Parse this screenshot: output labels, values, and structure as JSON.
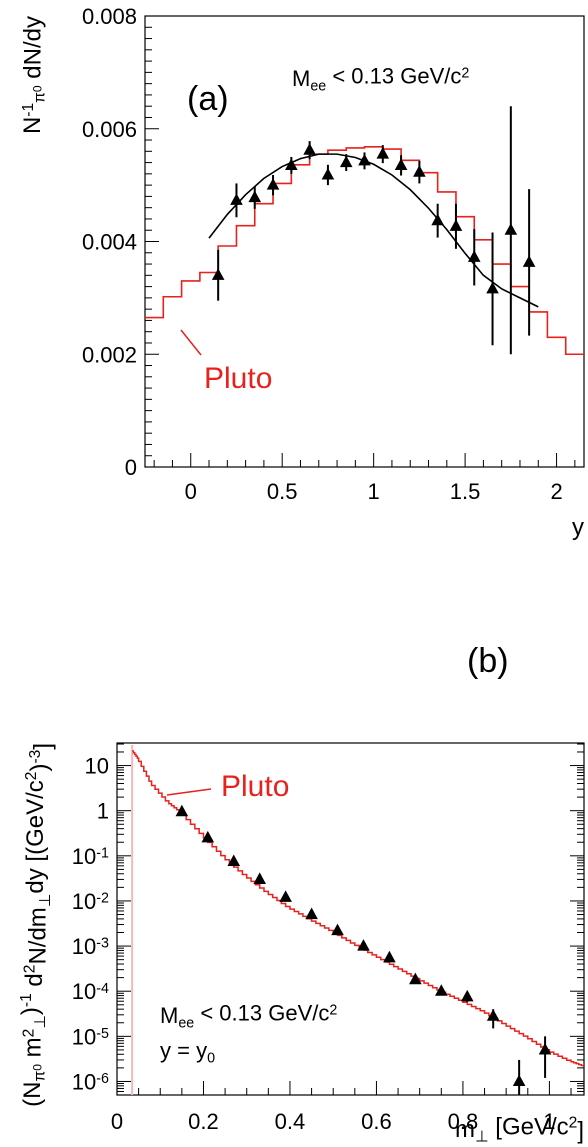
{
  "chart_data": [
    {
      "type": "line",
      "panel_label": "(a)",
      "annotation": {
        "main": "M",
        "sub": "ee",
        "rest": " < 0.13 GeV/c",
        "sup": "2"
      },
      "xlabel": "y",
      "ylabel": {
        "a": "N",
        "sup": "-1",
        "sub": "π",
        "subsup": "0",
        "b": " dN/dy"
      },
      "xlim": [
        -0.25,
        2.15
      ],
      "ylim": [
        0,
        0.008
      ],
      "x_ticks": [
        {
          "v": 0,
          "label": "0"
        },
        {
          "v": 0.5,
          "label": "0.5"
        },
        {
          "v": 1,
          "label": "1"
        },
        {
          "v": 1.5,
          "label": "1.5"
        },
        {
          "v": 2,
          "label": "2"
        }
      ],
      "y_ticks": [
        {
          "v": 0,
          "label": "0"
        },
        {
          "v": 0.002,
          "label": "0.002"
        },
        {
          "v": 0.004,
          "label": "0.004"
        },
        {
          "v": 0.006,
          "label": "0.006"
        },
        {
          "v": 0.008,
          "label": "0.008"
        }
      ],
      "pluto_label": "Pluto",
      "series": [
        {
          "kind": "step",
          "color": "#e8211c",
          "edges": [
            -0.25,
            -0.15,
            -0.05,
            0.05,
            0.15,
            0.25,
            0.35,
            0.45,
            0.55,
            0.65,
            0.75,
            0.85,
            0.95,
            1.05,
            1.15,
            1.25,
            1.35,
            1.45,
            1.55,
            1.65,
            1.75,
            1.85,
            1.95,
            2.05,
            2.15
          ],
          "values": [
            0.00265,
            0.00302,
            0.0033,
            0.00345,
            0.00392,
            0.00428,
            0.00467,
            0.00503,
            0.00536,
            0.00555,
            0.00562,
            0.00566,
            0.00568,
            0.00564,
            0.00544,
            0.00522,
            0.00488,
            0.00444,
            0.00403,
            0.0036,
            0.0032,
            0.00275,
            0.0023,
            0.002
          ]
        },
        {
          "kind": "fit",
          "color": "#000000",
          "x": [
            0.1,
            0.2,
            0.3,
            0.4,
            0.5,
            0.6,
            0.7,
            0.8,
            0.9,
            1.0,
            1.1,
            1.2,
            1.3,
            1.4,
            1.5,
            1.6,
            1.7,
            1.8,
            1.9
          ],
          "y": [
            0.00406,
            0.00448,
            0.00483,
            0.00512,
            0.00533,
            0.00547,
            0.00555,
            0.00555,
            0.00549,
            0.00537,
            0.00518,
            0.00492,
            0.00459,
            0.00421,
            0.00379,
            0.0034,
            0.00316,
            0.003,
            0.00284
          ]
        },
        {
          "kind": "points",
          "color": "#000000",
          "x": [
            0.15,
            0.25,
            0.35,
            0.45,
            0.55,
            0.65,
            0.75,
            0.85,
            0.95,
            1.05,
            1.15,
            1.25,
            1.35,
            1.45,
            1.55,
            1.65,
            1.75,
            1.85
          ],
          "y": [
            0.0034,
            0.00473,
            0.00478,
            0.005,
            0.00535,
            0.00562,
            0.00518,
            0.0054,
            0.00543,
            0.00555,
            0.00535,
            0.00523,
            0.00437,
            0.00427,
            0.00372,
            0.00316,
            0.0042,
            0.00363
          ],
          "err": [
            0.00045,
            0.0003,
            0.0002,
            0.00018,
            0.00015,
            0.00016,
            0.00018,
            0.00015,
            0.00015,
            0.00016,
            0.00018,
            0.0002,
            0.0003,
            0.0004,
            0.0005,
            0.001,
            0.0022,
            0.0013
          ]
        }
      ]
    },
    {
      "type": "line",
      "panel_label": "(b)",
      "annotation": {
        "main": "M",
        "sub": "ee",
        "rest": " < 0.13 GeV/c",
        "sup": "2"
      },
      "annotation2": {
        "a": "y  =  y",
        "sub": "0"
      },
      "xlabel": {
        "a": "m",
        "sub": "⊥",
        "b": "  [GeV/c",
        "sup": "2",
        "c": "]"
      },
      "ylabel": {
        "a": "(N",
        "sub1": "π",
        "subsup1": "0",
        "b": " m",
        "sup2": "2",
        "sub2": "⊥",
        "c": ")",
        "sup3": "-1",
        "d": " d",
        "sup4": "2",
        "e": "N/dm",
        "sub5": "⊥",
        "f": "dy  [(GeV/c",
        "sup6": "2",
        "g": ")",
        "sup7": "-3",
        "h": "]"
      },
      "xlim": [
        0,
        1.08
      ],
      "ylim_log10": [
        -6.3,
        1.5
      ],
      "x_ticks": [
        {
          "v": 0,
          "label": "0"
        },
        {
          "v": 0.2,
          "label": "0.2"
        },
        {
          "v": 0.4,
          "label": "0.4"
        },
        {
          "v": 0.6,
          "label": "0.6"
        },
        {
          "v": 0.8,
          "label": "0.8"
        },
        {
          "v": 1,
          "label": "1"
        }
      ],
      "y_ticks": [
        {
          "exp": 1,
          "label": "10"
        },
        {
          "exp": 0,
          "label": "1"
        },
        {
          "exp": -1,
          "label": "10",
          "sup": "-1"
        },
        {
          "exp": -2,
          "label": "10",
          "sup": "-2"
        },
        {
          "exp": -3,
          "label": "10",
          "sup": "-3"
        },
        {
          "exp": -4,
          "label": "10",
          "sup": "-4"
        },
        {
          "exp": -5,
          "label": "10",
          "sup": "-5"
        },
        {
          "exp": -6,
          "label": "10",
          "sup": "-6"
        }
      ],
      "pluto_label": "Pluto",
      "series": [
        {
          "kind": "curve",
          "color": "#e8211c",
          "x": [
            0.035,
            0.05,
            0.08,
            0.12,
            0.15,
            0.2,
            0.25,
            0.3,
            0.35,
            0.4,
            0.45,
            0.5,
            0.55,
            0.6,
            0.65,
            0.7,
            0.75,
            0.8,
            0.85,
            0.9,
            0.95,
            1.0,
            1.05,
            1.08
          ],
          "y": [
            22,
            14,
            4.0,
            1.5,
            0.9,
            0.28,
            0.09,
            0.035,
            0.015,
            0.007,
            0.0038,
            0.0021,
            0.0011,
            0.0006,
            0.00033,
            0.00018,
            0.0001,
            6e-05,
            3.5e-05,
            1.8e-05,
            9.5e-06,
            4.7e-06,
            2.8e-06,
            2.2e-06
          ]
        },
        {
          "kind": "points",
          "color": "#000000",
          "x": [
            0.15,
            0.21,
            0.27,
            0.33,
            0.39,
            0.45,
            0.51,
            0.57,
            0.63,
            0.69,
            0.75,
            0.81,
            0.87,
            0.93,
            0.99
          ],
          "y": [
            0.95,
            0.25,
            0.075,
            0.03,
            0.012,
            0.005,
            0.0022,
            0.001,
            0.00055,
            0.00018,
            0.0001,
            7.5e-05,
            2.8e-05,
            1e-06,
            5e-06
          ],
          "err_lo": [
            0.8,
            0.21,
            0.063,
            0.025,
            0.0105,
            0.0043,
            0.00185,
            0.00083,
            0.00045,
            0.00015,
            8.2e-05,
            5.8e-05,
            1.5e-05,
            3e-07,
            1.2e-06
          ],
          "err_hi": [
            1.1,
            0.29,
            0.088,
            0.035,
            0.014,
            0.0058,
            0.0026,
            0.0012,
            0.00066,
            0.00022,
            0.000125,
            9.5e-05,
            4e-05,
            3e-06,
            1e-05
          ]
        }
      ]
    }
  ]
}
